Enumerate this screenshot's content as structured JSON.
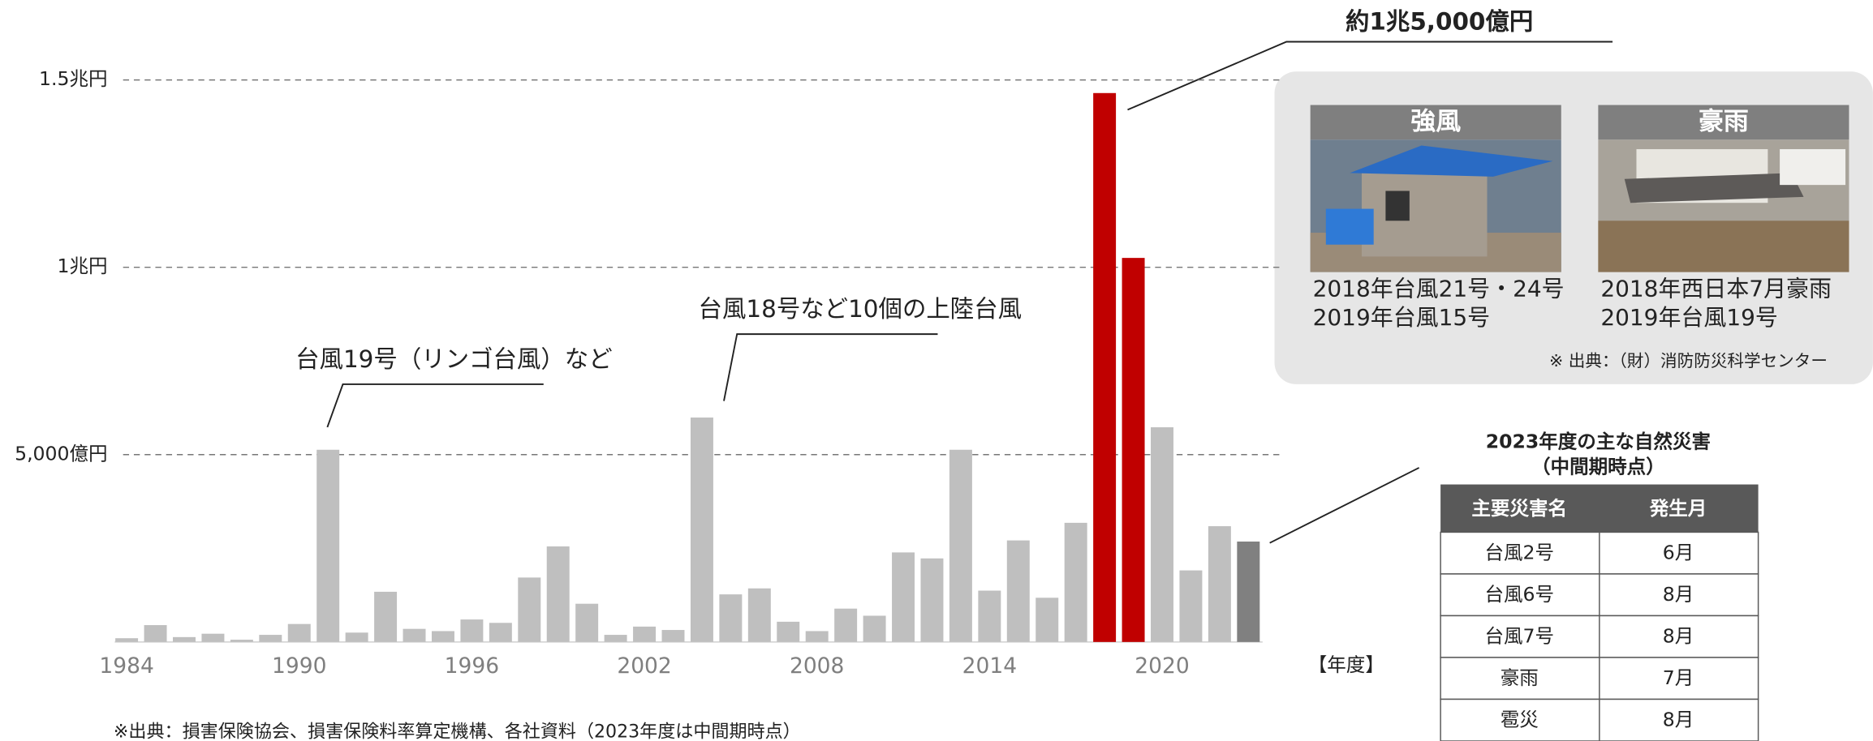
{
  "chart_data": {
    "type": "bar",
    "categories": [
      "1984",
      null,
      null,
      null,
      null,
      null,
      "1990",
      null,
      null,
      null,
      null,
      null,
      "1996",
      null,
      null,
      null,
      null,
      null,
      "2002",
      null,
      null,
      null,
      null,
      null,
      "2008",
      null,
      null,
      null,
      null,
      null,
      "2014",
      null,
      null,
      null,
      null,
      null,
      "2020",
      null,
      null,
      null
    ],
    "values": [
      100,
      450,
      130,
      220,
      60,
      190,
      480,
      5130,
      250,
      1340,
      350,
      290,
      600,
      510,
      1720,
      2550,
      1020,
      190,
      410,
      320,
      5990,
      1270,
      1430,
      540,
      290,
      890,
      700,
      2390,
      2230,
      5130,
      1370,
      2710,
      1180,
      3180,
      14650,
      10250,
      5730,
      1910,
      3090,
      2680
    ],
    "colors": [
      "#bfbfbf",
      "#bfbfbf",
      "#bfbfbf",
      "#bfbfbf",
      "#bfbfbf",
      "#bfbfbf",
      "#bfbfbf",
      "#bfbfbf",
      "#bfbfbf",
      "#bfbfbf",
      "#bfbfbf",
      "#bfbfbf",
      "#bfbfbf",
      "#bfbfbf",
      "#bfbfbf",
      "#bfbfbf",
      "#bfbfbf",
      "#bfbfbf",
      "#bfbfbf",
      "#bfbfbf",
      "#bfbfbf",
      "#bfbfbf",
      "#bfbfbf",
      "#bfbfbf",
      "#bfbfbf",
      "#bfbfbf",
      "#bfbfbf",
      "#bfbfbf",
      "#bfbfbf",
      "#bfbfbf",
      "#bfbfbf",
      "#bfbfbf",
      "#bfbfbf",
      "#bfbfbf",
      "#c00000",
      "#c00000",
      "#bfbfbf",
      "#bfbfbf",
      "#bfbfbf",
      "#808080"
    ],
    "ylim": [
      0,
      15000
    ],
    "yticks": [
      {
        "value": 5000,
        "label": "5,000億円"
      },
      {
        "value": 10000,
        "label": "1兆円"
      },
      {
        "value": 15000,
        "label": "1.5兆円"
      }
    ],
    "grid": true,
    "x_unit": "【年度】",
    "annotations": [
      "台風19号（リンゴ台風）など",
      "台風18号など10個の上陸台風",
      "約1兆5,000億円"
    ],
    "source": "※出典：損害保険協会、損害保険料率算定機構、各社資料（2023年度は中間期時点）"
  },
  "panel": {
    "cards": [
      {
        "title": "強風",
        "captions": [
          "2018年台風21号・24号",
          "2019年台風15号"
        ]
      },
      {
        "title": "豪雨",
        "captions": [
          "2018年西日本7月豪雨",
          "2019年台風19号"
        ]
      }
    ],
    "source": "※ 出典：（財）消防防災科学センター"
  },
  "table": {
    "title": [
      "2023年度の主な自然災害",
      "（中間期時点）"
    ],
    "header": [
      "主要災害名",
      "発生月"
    ],
    "rows": [
      [
        "台風2号",
        "6月"
      ],
      [
        "台風6号",
        "8月"
      ],
      [
        "台風7号",
        "8月"
      ],
      [
        "豪雨",
        "7月"
      ],
      [
        "雹災",
        "8月"
      ]
    ]
  }
}
